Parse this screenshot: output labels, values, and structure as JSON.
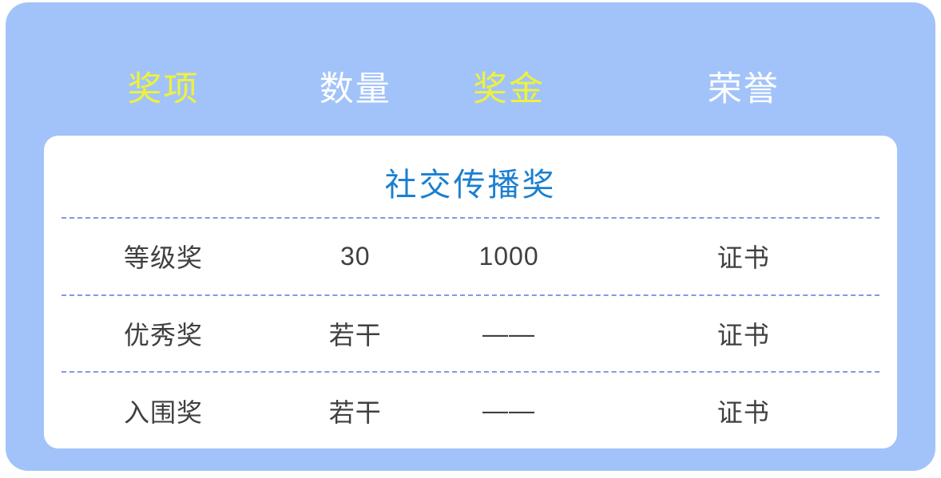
{
  "colors": {
    "panel_bg": "#a2c3f9",
    "card_bg": "#ffffff",
    "header_highlight_text": "#eff23a",
    "header_text": "#ffffff",
    "card_title_text": "#1b7fd0",
    "body_text": "#404040",
    "divider": "#7d9be5"
  },
  "header": {
    "columns": [
      {
        "label": "奖项",
        "highlighted": true
      },
      {
        "label": "数量",
        "highlighted": false
      },
      {
        "label": "奖金",
        "highlighted": true
      },
      {
        "label": "荣誉",
        "highlighted": false
      }
    ]
  },
  "card": {
    "title": "社交传播奖",
    "rows": [
      {
        "award": "等级奖",
        "quantity": "30",
        "prize": "1000",
        "honor": "证书"
      },
      {
        "award": "优秀奖",
        "quantity": "若干",
        "prize": "——",
        "honor": "证书"
      },
      {
        "award": "入围奖",
        "quantity": "若干",
        "prize": "——",
        "honor": "证书"
      }
    ]
  }
}
